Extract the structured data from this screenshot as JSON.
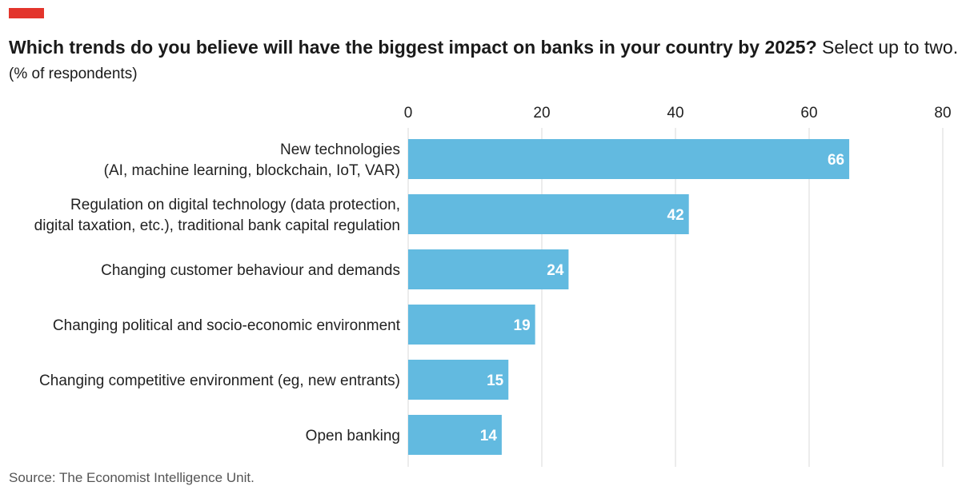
{
  "title": {
    "bold": "Which trends do you believe will have the biggest impact on banks in your country by 2025?",
    "normal": " Select up to two."
  },
  "unit": "(% of respondents)",
  "source": "Source: The Economist Intelligence Unit.",
  "colors": {
    "bar": "#62bae0",
    "accent": "#e3352c",
    "grid": "#d9d9d9"
  },
  "chart_data": {
    "type": "bar",
    "orientation": "horizontal",
    "title": "Which trends do you believe will have the biggest impact on banks in your country by 2025? Select up to two.",
    "xlabel": "(% of respondents)",
    "ylabel": "",
    "xlim": [
      0,
      80
    ],
    "xticks": [
      0,
      20,
      40,
      60,
      80
    ],
    "grid": true,
    "categories": [
      [
        "New technologies",
        "(AI, machine learning, blockchain, IoT, VAR)"
      ],
      [
        "Regulation on digital technology (data protection,",
        "digital taxation, etc.), traditional bank capital regulation"
      ],
      [
        "Changing customer behaviour and demands"
      ],
      [
        "Changing political and socio-economic environment"
      ],
      [
        "Changing competitive environment (eg, new entrants)"
      ],
      [
        "Open banking"
      ]
    ],
    "values": [
      66,
      42,
      24,
      19,
      15,
      14
    ]
  }
}
